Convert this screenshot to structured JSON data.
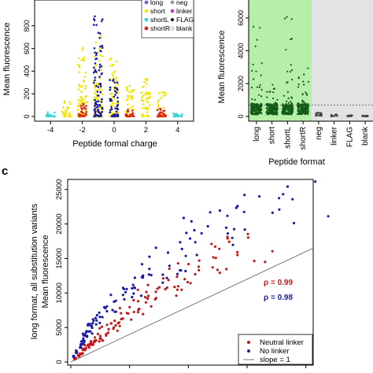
{
  "panel_c_label": "c",
  "chart_data": [
    {
      "type": "scatter",
      "panel": "top-left",
      "xlabel": "Peptide formal charge",
      "ylabel": "Mean fluorescence",
      "xticks": [
        "-4",
        "-2",
        "0",
        "2",
        "4"
      ],
      "yticks": [
        "0",
        "200",
        "400",
        "600",
        "800"
      ],
      "xlim": [
        -5,
        5
      ],
      "ylim": [
        0,
        1000
      ],
      "legend": {
        "placement": "top-right",
        "entries": [
          {
            "label": "long",
            "color": "#6b6bd6",
            "shape": "dot"
          },
          {
            "label": "neg",
            "color": "#9a9a9a",
            "shape": "dot"
          },
          {
            "label": "short",
            "color": "#f2e600",
            "shape": "dot"
          },
          {
            "label": "linker",
            "color": "#b84cc4",
            "shape": "dot"
          },
          {
            "label": "shortL",
            "color": "#35d6d6",
            "shape": "dot"
          },
          {
            "label": "FLAG",
            "color": "#000000",
            "shape": "diamond"
          },
          {
            "label": "shortR",
            "color": "#e11a1a",
            "shape": "dot"
          },
          {
            "label": "blank",
            "color": "#9a9a9a",
            "shape": "open"
          }
        ]
      },
      "clusters": [
        {
          "x": -4,
          "color": "#35d6d6",
          "ymax": 40
        },
        {
          "x": -3,
          "color": "#f2e600",
          "ymax": 150
        },
        {
          "x": -2,
          "color": "#f2e600",
          "ymax": 640
        },
        {
          "x": -2,
          "color": "#e11a1a",
          "ymax": 120
        },
        {
          "x": -1,
          "color": "#f2e600",
          "ymax": 760
        },
        {
          "x": -1,
          "color": "#1a1aa6",
          "ymax": 900
        },
        {
          "x": 0,
          "color": "#f2e600",
          "ymax": 540
        },
        {
          "x": 0,
          "color": "#1a1aa6",
          "ymax": 330
        },
        {
          "x": 1,
          "color": "#f2e600",
          "ymax": 280
        },
        {
          "x": 1,
          "color": "#e11a1a",
          "ymax": 60
        },
        {
          "x": 2,
          "color": "#f2e600",
          "ymax": 340
        },
        {
          "x": 3,
          "color": "#f2e600",
          "ymax": 220
        },
        {
          "x": 3,
          "color": "#e11a1a",
          "ymax": 70
        },
        {
          "x": 4,
          "color": "#35d6d6",
          "ymax": 30
        }
      ]
    },
    {
      "type": "scatter",
      "panel": "top-right",
      "ylabel": "Mean fluorescence",
      "xlabel": "Peptide format",
      "categories": [
        "long",
        "short",
        "shortL",
        "shortR",
        "neg",
        "linker",
        "FLAG",
        "blank"
      ],
      "yticks": [
        "0",
        "2000",
        "4000",
        "6000"
      ],
      "ylim": [
        0,
        7000
      ],
      "threshold": 700,
      "background": {
        "green": [
          "long",
          "short",
          "shortL",
          "shortR"
        ],
        "gray": [
          "neg",
          "linker",
          "FLAG",
          "blank"
        ]
      },
      "series": [
        {
          "category": "long",
          "ymax": 6100,
          "color": "#0f5a17"
        },
        {
          "category": "short",
          "ymax": 2000,
          "color": "#0f5a17"
        },
        {
          "category": "shortL",
          "ymax": 6400,
          "color": "#0f5a17"
        },
        {
          "category": "shortR",
          "ymax": 3000,
          "color": "#0f5a17"
        },
        {
          "category": "neg",
          "ymax": 250,
          "color": "#444444"
        },
        {
          "category": "linker",
          "ymax": 150,
          "color": "#444444"
        },
        {
          "category": "FLAG",
          "ymax": 80,
          "color": "#444444"
        },
        {
          "category": "blank",
          "ymax": 60,
          "color": "#444444"
        }
      ]
    },
    {
      "type": "scatter",
      "panel": "bottom",
      "ylabel_line1": "long format, all substitution variants",
      "ylabel_line2": "Mean fluorescence",
      "yticks": [
        "0",
        "5000",
        "10000",
        "15000",
        "20000",
        "25000"
      ],
      "ylim": [
        0,
        26000
      ],
      "xlim": [
        0,
        16500
      ],
      "annotations": [
        {
          "text": "ρ = 0.99",
          "color": "#c41a1a"
        },
        {
          "text": "ρ = 0.98",
          "color": "#1a1aa6"
        }
      ],
      "legend": {
        "placement": "bottom-right",
        "entries": [
          {
            "label": "Neutral linker",
            "color": "#c41a1a",
            "shape": "dot"
          },
          {
            "label": "No linker",
            "color": "#1a1aa6",
            "shape": "dot"
          },
          {
            "label": "slope = 1",
            "color": "#777777",
            "shape": "line"
          }
        ]
      },
      "reference_line": {
        "slope": 1,
        "from": [
          0,
          0
        ],
        "to": [
          16500,
          16500
        ]
      },
      "series": [
        {
          "name": "Neutral linker",
          "color": "#c41a1a",
          "x": [
            300,
            500,
            700,
            900,
            1100,
            1300,
            1500,
            1700,
            1900,
            2100,
            2300,
            2500,
            2700,
            2900,
            3100,
            3300,
            3500,
            3700,
            3900,
            4200,
            4500,
            4800,
            5100,
            5400,
            5700,
            6000,
            6400,
            6800,
            7200,
            7600,
            8000,
            8500,
            9000,
            9500,
            10000,
            10500,
            11000,
            11500,
            12000
          ],
          "y": [
            500,
            900,
            1300,
            1800,
            2200,
            2500,
            2900,
            3300,
            3600,
            3900,
            4300,
            4700,
            5000,
            5300,
            5700,
            6000,
            6400,
            6800,
            7100,
            7600,
            8000,
            8500,
            8900,
            9400,
            9700,
            10100,
            10600,
            11200,
            11800,
            12300,
            12800,
            13300,
            13900,
            14300,
            14900,
            15300,
            15800,
            16300,
            17300
          ]
        },
        {
          "name": "No linker",
          "color": "#1a1aa6",
          "x": [
            200,
            400,
            600,
            800,
            1000,
            1200,
            1400,
            1600,
            1800,
            2000,
            2300,
            2600,
            2900,
            3200,
            3500,
            3800,
            4100,
            4400,
            4800,
            5200,
            5600,
            6000,
            6500,
            7000,
            7500,
            8000,
            8600,
            9200,
            9800,
            10400,
            11000,
            11800,
            12600,
            13400,
            14200,
            15000
          ],
          "y": [
            800,
            1500,
            2200,
            3000,
            3600,
            4200,
            4800,
            5300,
            5800,
            6300,
            7000,
            7600,
            8200,
            8800,
            9400,
            10000,
            10600,
            11100,
            11800,
            12500,
            13100,
            13800,
            14500,
            15200,
            15900,
            16600,
            17400,
            18200,
            19000,
            19800,
            20500,
            21300,
            22100,
            22800,
            23500,
            24200
          ]
        }
      ]
    }
  ]
}
